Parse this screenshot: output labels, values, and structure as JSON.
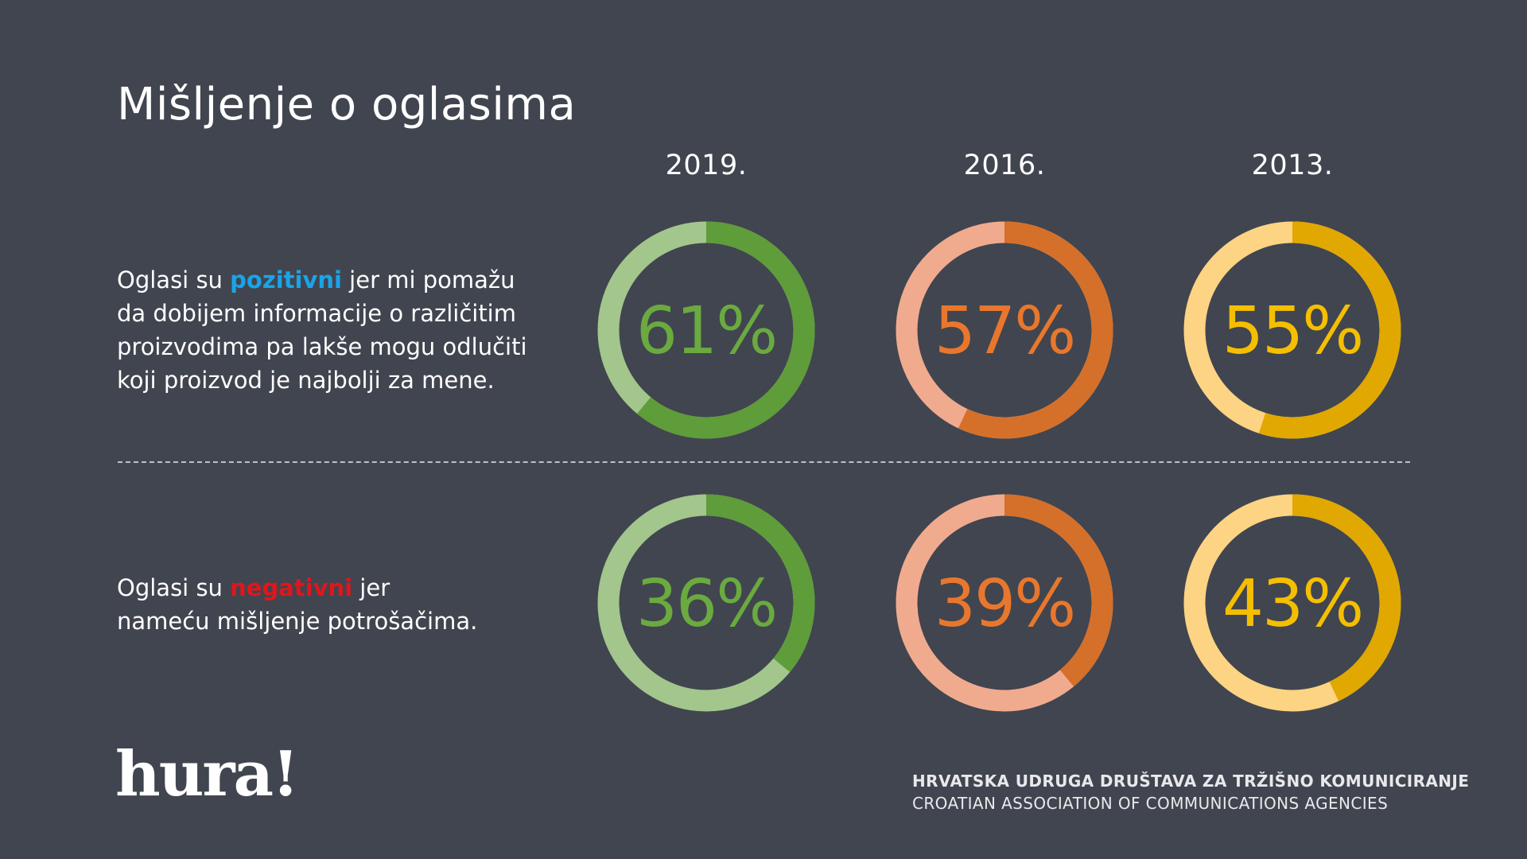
{
  "title": "Mišljenje o oglasima",
  "years": [
    "2019.",
    "2016.",
    "2013."
  ],
  "statements": {
    "positive": {
      "before": "Oglasi su ",
      "highlight": "pozitivni",
      "after": " jer mi pomažu da dobijem informacije o različitim proizvodima pa lakše mogu odlučiti koji proizvod je najbolji za mene.",
      "highlight_color": "#1aa4e8"
    },
    "negative": {
      "before": "Oglasi su ",
      "highlight": "negativni",
      "after": " jer nameću mišljenje potrošačima.",
      "highlight_color": "#e0161b"
    }
  },
  "colors": {
    "background": "#41454f",
    "2019": {
      "dark": "#5f9c3a",
      "light": "#a2c68c",
      "text": "#6aaa3f"
    },
    "2016": {
      "dark": "#d4702a",
      "light": "#f0ab8f",
      "text": "#e8772d"
    },
    "2013": {
      "dark": "#e0a800",
      "light": "#fdd483",
      "text": "#f5bf00"
    }
  },
  "chart_data": {
    "type": "donut",
    "title": "Mišljenje o oglasima",
    "categories": [
      "2019.",
      "2016.",
      "2013."
    ],
    "series": [
      {
        "name": "pozitivni",
        "values": [
          61,
          57,
          55
        ],
        "labels": [
          "61%",
          "57%",
          "55%"
        ]
      },
      {
        "name": "negativni",
        "values": [
          36,
          39,
          43
        ],
        "labels": [
          "36%",
          "39%",
          "43%"
        ]
      }
    ],
    "unit": "%"
  },
  "footer": {
    "logo": "hura!",
    "association_hr": "HRVATSKA UDRUGA DRUŠTAVA ZA TRŽIŠNO KOMUNICIRANJE",
    "association_en": "CROATIAN ASSOCIATION OF COMMUNICATIONS AGENCIES"
  }
}
